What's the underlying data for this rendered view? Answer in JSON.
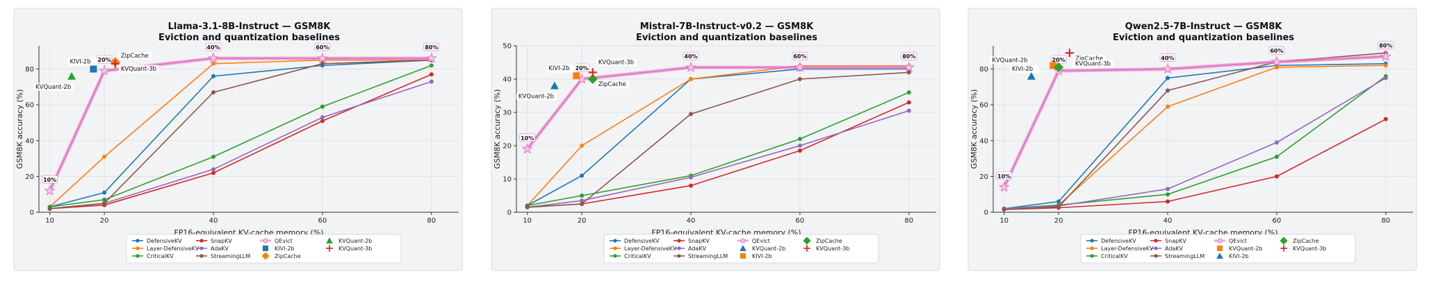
{
  "chart_data": [
    {
      "type": "line",
      "title": "Llama-3.1-8B-Instruct — GSM8K",
      "subtitle": "Eviction and quantization baselines",
      "xlabel": "FP16-equivalent KV-cache memory (%)",
      "ylabel": "GSM8K accuracy (%)",
      "x": [
        10,
        20,
        40,
        60,
        80
      ],
      "xlim": [
        8,
        85
      ],
      "ylim": [
        0,
        93
      ],
      "yticks": [
        0,
        20,
        40,
        60,
        80
      ],
      "grid": true,
      "legend_position": "bottom",
      "series": [
        {
          "name": "DefensiveKV",
          "color": "#1f77b4",
          "values": [
            3,
            11,
            76,
            82,
            85
          ]
        },
        {
          "name": "Layer-DefensiveKV",
          "color": "#ff7f0e",
          "values": [
            3,
            31,
            83,
            85,
            85
          ]
        },
        {
          "name": "CriticalKV",
          "color": "#2ca02c",
          "values": [
            3,
            7,
            31,
            59,
            82
          ]
        },
        {
          "name": "SnapKV",
          "color": "#d62728",
          "values": [
            2,
            4,
            22,
            51,
            77
          ]
        },
        {
          "name": "AdaKV",
          "color": "#9467bd",
          "values": [
            2,
            5,
            24,
            53,
            73
          ]
        },
        {
          "name": "StreamingLLM",
          "color": "#8c564b",
          "values": [
            2,
            5,
            67,
            83,
            85
          ]
        },
        {
          "name": "QEvict",
          "color": "#e377c2",
          "values": [
            12,
            79,
            86,
            86,
            86
          ]
        }
      ],
      "qevict_labels": [
        "10%",
        "20%",
        "40%",
        "60%",
        "80%"
      ],
      "points": [
        {
          "name": "KIVI-2b",
          "marker": "square",
          "color": "#1f77b4",
          "x": 18,
          "y": 80
        },
        {
          "name": "ZipCache",
          "marker": "diamond",
          "color": "#ff7f0e",
          "x": 22,
          "y": 84
        },
        {
          "name": "KVQuant-2b",
          "marker": "triangle",
          "color": "#2ca02c",
          "x": 14,
          "y": 76
        },
        {
          "name": "KVQuant-3b",
          "marker": "plus",
          "color": "#d62728",
          "x": 22,
          "y": 83
        }
      ],
      "legend_entries": [
        "DefensiveKV",
        "Layer-DefensiveKV",
        "CriticalKV",
        "SnapKV",
        "AdaKV",
        "StreamingLLM",
        "QEvict",
        "KIVI-2b",
        "ZipCache",
        "KVQuant-2b",
        "KVQuant-3b"
      ]
    },
    {
      "type": "line",
      "title": "Mistral-7B-Instruct-v0.2 — GSM8K",
      "subtitle": "Eviction and quantization baselines",
      "xlabel": "FP16-equivalent KV-cache memory (%)",
      "ylabel": "GSM8K accuracy (%)",
      "x": [
        10,
        20,
        40,
        60,
        80
      ],
      "xlim": [
        8,
        85
      ],
      "ylim": [
        0,
        50
      ],
      "yticks": [
        0,
        10,
        20,
        30,
        40,
        50
      ],
      "grid": true,
      "legend_position": "bottom",
      "series": [
        {
          "name": "DefensiveKV",
          "color": "#1f77b4",
          "values": [
            2,
            11,
            40,
            43,
            43
          ]
        },
        {
          "name": "Layer-DefensiveKV",
          "color": "#ff7f0e",
          "values": [
            2,
            20,
            40,
            44,
            44
          ]
        },
        {
          "name": "CriticalKV",
          "color": "#2ca02c",
          "values": [
            2,
            5,
            11,
            22,
            36
          ]
        },
        {
          "name": "SnapKV",
          "color": "#d62728",
          "values": [
            1.5,
            2.5,
            8,
            18.5,
            33
          ]
        },
        {
          "name": "AdaKV",
          "color": "#9467bd",
          "values": [
            1.5,
            3.5,
            10.5,
            20,
            30.5
          ]
        },
        {
          "name": "StreamingLLM",
          "color": "#8c564b",
          "values": [
            1.5,
            2.5,
            29.5,
            40,
            42
          ]
        },
        {
          "name": "QEvict",
          "color": "#e377c2",
          "values": [
            19,
            40,
            43.5,
            43.5,
            43.5
          ]
        }
      ],
      "qevict_labels": [
        "10%",
        "20%",
        "40%",
        "60%",
        "80%"
      ],
      "points": [
        {
          "name": "KVQuant-2b",
          "marker": "triangle",
          "color": "#1f77b4",
          "x": 15,
          "y": 38
        },
        {
          "name": "KIVI-2b",
          "marker": "square",
          "color": "#ff7f0e",
          "x": 19,
          "y": 41
        },
        {
          "name": "ZipCache",
          "marker": "diamond",
          "color": "#2ca02c",
          "x": 22,
          "y": 40
        },
        {
          "name": "KVQuant-3b",
          "marker": "plus",
          "color": "#d62728",
          "x": 22,
          "y": 42
        }
      ],
      "legend_entries": [
        "DefensiveKV",
        "Layer-DefensiveKV",
        "CriticalKV",
        "SnapKV",
        "AdaKV",
        "StreamingLLM",
        "QEvict",
        "KVQuant-2b",
        "KIVI-2b",
        "ZipCache",
        "KVQuant-3b"
      ]
    },
    {
      "type": "line",
      "title": "Qwen2.5-7B-Instruct — GSM8K",
      "subtitle": "Eviction and quantization baselines",
      "xlabel": "FP16-equivalent KV-cache memory (%)",
      "ylabel": "GSM8K accuracy (%)",
      "x": [
        10,
        20,
        40,
        60,
        80
      ],
      "xlim": [
        8,
        85
      ],
      "ylim": [
        0,
        93
      ],
      "yticks": [
        0,
        20,
        40,
        60,
        80
      ],
      "grid": true,
      "legend_position": "bottom",
      "series": [
        {
          "name": "DefensiveKV",
          "color": "#1f77b4",
          "values": [
            2,
            6,
            75,
            82,
            83
          ]
        },
        {
          "name": "Layer-DefensiveKV",
          "color": "#ff7f0e",
          "values": [
            2,
            4,
            59,
            81,
            82
          ]
        },
        {
          "name": "CriticalKV",
          "color": "#2ca02c",
          "values": [
            2,
            4,
            10,
            31,
            76
          ]
        },
        {
          "name": "SnapKV",
          "color": "#d62728",
          "values": [
            1.5,
            2.5,
            6,
            20,
            52
          ]
        },
        {
          "name": "AdaKV",
          "color": "#9467bd",
          "values": [
            2,
            3.5,
            13,
            39,
            75
          ]
        },
        {
          "name": "StreamingLLM",
          "color": "#8c564b",
          "values": [
            1.5,
            3,
            68,
            84,
            89
          ]
        },
        {
          "name": "QEvict",
          "color": "#e377c2",
          "values": [
            14,
            79,
            80,
            84,
            87
          ]
        }
      ],
      "qevict_labels": [
        "10%",
        "20%",
        "40%",
        "60%",
        "80%"
      ],
      "points": [
        {
          "name": "KIVI-2b",
          "marker": "triangle",
          "color": "#1f77b4",
          "x": 15,
          "y": 76
        },
        {
          "name": "KVQuant-2b",
          "marker": "square",
          "color": "#ff7f0e",
          "x": 19,
          "y": 82
        },
        {
          "name": "ZipCache",
          "marker": "diamond",
          "color": "#2ca02c",
          "x": 20,
          "y": 81
        },
        {
          "name": "KVQuant-3b",
          "marker": "plus",
          "color": "#d62728",
          "x": 22,
          "y": 89
        }
      ],
      "legend_entries": [
        "DefensiveKV",
        "Layer-DefensiveKV",
        "CriticalKV",
        "SnapKV",
        "AdaKV",
        "StreamingLLM",
        "QEvict",
        "KVQuant-2b",
        "KIVI-2b",
        "ZipCache",
        "KVQuant-3b"
      ]
    }
  ]
}
